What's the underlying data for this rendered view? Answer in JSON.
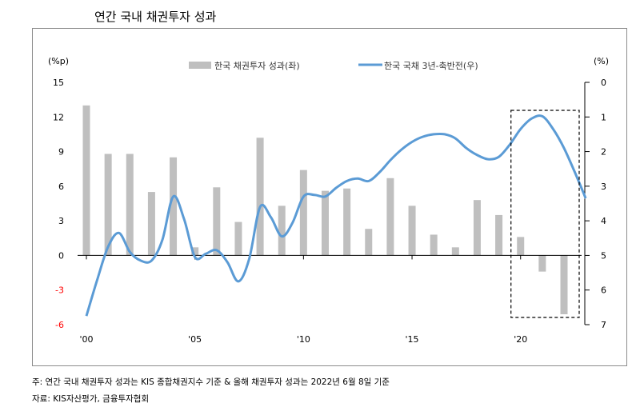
{
  "title": "연간 국내 채권투자 성과",
  "notes": {
    "note1": "주: 연간 국내 채권투자 성과는 KIS 종합채권지수 기준 & 올해 채권투자 성과는 2022년 6월 8일 기준",
    "note2": "자료: KIS자산평가, 금융투자협회"
  },
  "colors": {
    "bar": "#bfbfbf",
    "line": "#5b9bd5",
    "negative_tick": "#ff0000",
    "box": "#000000"
  },
  "chart_data": {
    "type": "bar",
    "title": "연간 국내 채권투자 성과",
    "left_axis": {
      "unit_label": "(%p)",
      "range": [
        -6,
        15
      ],
      "ticks": [
        {
          "value": 15,
          "label": "15"
        },
        {
          "value": 12,
          "label": "12"
        },
        {
          "value": 9,
          "label": "9"
        },
        {
          "value": 6,
          "label": "6"
        },
        {
          "value": 3,
          "label": "3"
        },
        {
          "value": 0,
          "label": "0"
        },
        {
          "value": -3,
          "label": "-3"
        },
        {
          "value": -6,
          "label": "-6"
        }
      ]
    },
    "right_axis": {
      "unit_label": "(%)",
      "range": [
        0,
        7
      ],
      "inverted": true,
      "ticks": [
        {
          "value": 0,
          "label": "0"
        },
        {
          "value": 1,
          "label": "1"
        },
        {
          "value": 2,
          "label": "2"
        },
        {
          "value": 3,
          "label": "3"
        },
        {
          "value": 4,
          "label": "4"
        },
        {
          "value": 5,
          "label": "5"
        },
        {
          "value": 6,
          "label": "6"
        },
        {
          "value": 7,
          "label": "7"
        }
      ]
    },
    "x_ticks": [
      {
        "value": 2000,
        "label": "'00"
      },
      {
        "value": 2005,
        "label": "'05"
      },
      {
        "value": 2010,
        "label": "'10"
      },
      {
        "value": 2015,
        "label": "'15"
      },
      {
        "value": 2020,
        "label": "'20"
      }
    ],
    "bar_series": {
      "name": "한국 채권투자 성과(좌)",
      "axis": "left",
      "x": [
        2000,
        2001,
        2002,
        2003,
        2004,
        2005,
        2006,
        2007,
        2008,
        2009,
        2010,
        2011,
        2012,
        2013,
        2014,
        2015,
        2016,
        2017,
        2018,
        2019,
        2020,
        2021,
        2022
      ],
      "values": [
        13.0,
        8.8,
        8.8,
        5.5,
        8.5,
        0.7,
        5.9,
        2.9,
        10.2,
        4.3,
        7.4,
        5.6,
        5.8,
        2.3,
        6.7,
        4.3,
        1.8,
        0.7,
        4.8,
        3.5,
        1.6,
        -1.4,
        -5.1
      ]
    },
    "line_series": {
      "name": "한국 국채 3년-축반전(우)",
      "axis": "right",
      "points": [
        [
          2000.0,
          6.75
        ],
        [
          2000.5,
          5.7
        ],
        [
          2001.0,
          4.75
        ],
        [
          2001.5,
          4.35
        ],
        [
          2002.0,
          4.9
        ],
        [
          2002.5,
          5.15
        ],
        [
          2003.0,
          5.15
        ],
        [
          2003.5,
          4.55
        ],
        [
          2004.0,
          3.3
        ],
        [
          2004.5,
          3.95
        ],
        [
          2005.0,
          5.05
        ],
        [
          2005.5,
          4.95
        ],
        [
          2006.0,
          4.85
        ],
        [
          2006.5,
          5.2
        ],
        [
          2007.0,
          5.75
        ],
        [
          2007.5,
          5.1
        ],
        [
          2008.0,
          3.6
        ],
        [
          2008.5,
          3.9
        ],
        [
          2009.0,
          4.45
        ],
        [
          2009.5,
          4.05
        ],
        [
          2010.0,
          3.3
        ],
        [
          2010.5,
          3.25
        ],
        [
          2011.0,
          3.3
        ],
        [
          2011.5,
          3.05
        ],
        [
          2012.0,
          2.85
        ],
        [
          2012.5,
          2.78
        ],
        [
          2013.0,
          2.85
        ],
        [
          2013.5,
          2.6
        ],
        [
          2014.0,
          2.25
        ],
        [
          2014.5,
          1.95
        ],
        [
          2015.0,
          1.72
        ],
        [
          2015.5,
          1.57
        ],
        [
          2016.0,
          1.5
        ],
        [
          2016.5,
          1.5
        ],
        [
          2017.0,
          1.62
        ],
        [
          2017.5,
          1.9
        ],
        [
          2018.0,
          2.1
        ],
        [
          2018.5,
          2.22
        ],
        [
          2019.0,
          2.15
        ],
        [
          2019.5,
          1.8
        ],
        [
          2020.0,
          1.35
        ],
        [
          2020.5,
          1.05
        ],
        [
          2021.0,
          0.98
        ],
        [
          2021.5,
          1.35
        ],
        [
          2022.0,
          1.9
        ],
        [
          2022.5,
          2.6
        ],
        [
          2023.0,
          3.35
        ]
      ]
    },
    "highlight_range": [
      2020,
      2022
    ]
  }
}
